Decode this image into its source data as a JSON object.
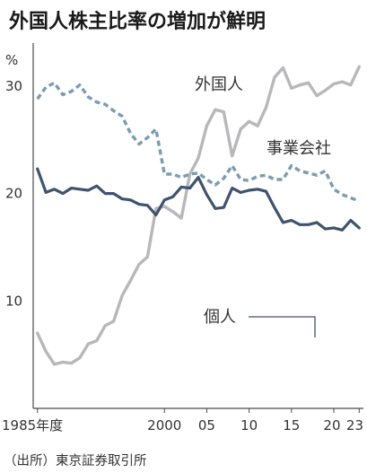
{
  "chart_data": {
    "type": "line",
    "title": "外国人株主比率の増加が鮮明",
    "unit": "%",
    "source": "（出所）東京証券取引所",
    "ylim": [
      0,
      34
    ],
    "y_ticks": [
      10,
      20,
      30
    ],
    "y_tick_labels": [
      "10",
      "20",
      "30"
    ],
    "x_ticks": [
      1985,
      2000,
      2005,
      2010,
      2015,
      2020,
      2023
    ],
    "x_tick_labels": [
      "1985年度",
      "2000",
      "05",
      "10",
      "15",
      "20",
      "23"
    ],
    "xlim": [
      1984.5,
      2023.5
    ],
    "grid": false,
    "colors": {
      "foreign": "#b8b8bb",
      "business": "#7a9cb4",
      "individual": "#3e536e"
    },
    "series": [
      {
        "name": "外国人",
        "key": "foreign",
        "style": "solid",
        "values": [
          [
            1985,
            7.0
          ],
          [
            1986,
            5.3
          ],
          [
            1987,
            4.1
          ],
          [
            1988,
            4.3
          ],
          [
            1989,
            4.2
          ],
          [
            1990,
            4.7
          ],
          [
            1991,
            6.0
          ],
          [
            1992,
            6.3
          ],
          [
            1993,
            7.7
          ],
          [
            1994,
            8.1
          ],
          [
            1995,
            10.5
          ],
          [
            1996,
            11.9
          ],
          [
            1997,
            13.4
          ],
          [
            1998,
            14.1
          ],
          [
            1999,
            18.6
          ],
          [
            2000,
            18.8
          ],
          [
            2001,
            18.3
          ],
          [
            2002,
            17.7
          ],
          [
            2003,
            21.8
          ],
          [
            2004,
            23.3
          ],
          [
            2005,
            26.3
          ],
          [
            2006,
            27.8
          ],
          [
            2007,
            27.6
          ],
          [
            2008,
            23.5
          ],
          [
            2009,
            26.0
          ],
          [
            2010,
            26.7
          ],
          [
            2011,
            26.3
          ],
          [
            2012,
            28.0
          ],
          [
            2013,
            30.8
          ],
          [
            2014,
            31.7
          ],
          [
            2015,
            29.8
          ],
          [
            2016,
            30.1
          ],
          [
            2017,
            30.3
          ],
          [
            2018,
            29.1
          ],
          [
            2019,
            29.6
          ],
          [
            2020,
            30.2
          ],
          [
            2021,
            30.4
          ],
          [
            2022,
            30.1
          ],
          [
            2023,
            31.8
          ]
        ]
      },
      {
        "name": "事業会社",
        "key": "business",
        "style": "dashed",
        "values": [
          [
            1985,
            28.8
          ],
          [
            1986,
            29.9
          ],
          [
            1987,
            30.3
          ],
          [
            1988,
            29.2
          ],
          [
            1989,
            29.5
          ],
          [
            1990,
            30.1
          ],
          [
            1991,
            29.0
          ],
          [
            1992,
            28.5
          ],
          [
            1993,
            28.3
          ],
          [
            1994,
            27.7
          ],
          [
            1995,
            27.2
          ],
          [
            1996,
            25.6
          ],
          [
            1997,
            24.6
          ],
          [
            1998,
            25.2
          ],
          [
            1999,
            26.0
          ],
          [
            2000,
            21.8
          ],
          [
            2001,
            21.8
          ],
          [
            2002,
            21.5
          ],
          [
            2003,
            21.8
          ],
          [
            2004,
            21.9
          ],
          [
            2005,
            21.3
          ],
          [
            2006,
            20.8
          ],
          [
            2007,
            21.4
          ],
          [
            2008,
            22.6
          ],
          [
            2009,
            21.3
          ],
          [
            2010,
            21.2
          ],
          [
            2011,
            21.6
          ],
          [
            2012,
            21.7
          ],
          [
            2013,
            21.3
          ],
          [
            2014,
            21.3
          ],
          [
            2015,
            22.6
          ],
          [
            2016,
            22.1
          ],
          [
            2017,
            21.9
          ],
          [
            2018,
            21.7
          ],
          [
            2019,
            22.1
          ],
          [
            2020,
            20.4
          ],
          [
            2021,
            19.9
          ],
          [
            2022,
            19.6
          ],
          [
            2023,
            19.3
          ]
        ]
      },
      {
        "name": "個人",
        "key": "individual",
        "style": "solid",
        "values": [
          [
            1985,
            22.3
          ],
          [
            1986,
            20.1
          ],
          [
            1987,
            20.4
          ],
          [
            1988,
            20.0
          ],
          [
            1989,
            20.5
          ],
          [
            1990,
            20.4
          ],
          [
            1991,
            20.3
          ],
          [
            1992,
            20.7
          ],
          [
            1993,
            20.0
          ],
          [
            1994,
            20.0
          ],
          [
            1995,
            19.5
          ],
          [
            1996,
            19.4
          ],
          [
            1997,
            19.0
          ],
          [
            1998,
            18.9
          ],
          [
            1999,
            18.0
          ],
          [
            2000,
            19.4
          ],
          [
            2001,
            19.7
          ],
          [
            2002,
            20.6
          ],
          [
            2003,
            20.5
          ],
          [
            2004,
            21.5
          ],
          [
            2005,
            19.9
          ],
          [
            2006,
            18.6
          ],
          [
            2007,
            18.7
          ],
          [
            2008,
            20.5
          ],
          [
            2009,
            20.1
          ],
          [
            2010,
            20.3
          ],
          [
            2011,
            20.4
          ],
          [
            2012,
            20.2
          ],
          [
            2013,
            18.7
          ],
          [
            2014,
            17.3
          ],
          [
            2015,
            17.5
          ],
          [
            2016,
            17.1
          ],
          [
            2017,
            17.1
          ],
          [
            2018,
            17.3
          ],
          [
            2019,
            16.7
          ],
          [
            2020,
            16.8
          ],
          [
            2021,
            16.6
          ],
          [
            2022,
            17.5
          ],
          [
            2023,
            16.8
          ]
        ]
      }
    ]
  }
}
